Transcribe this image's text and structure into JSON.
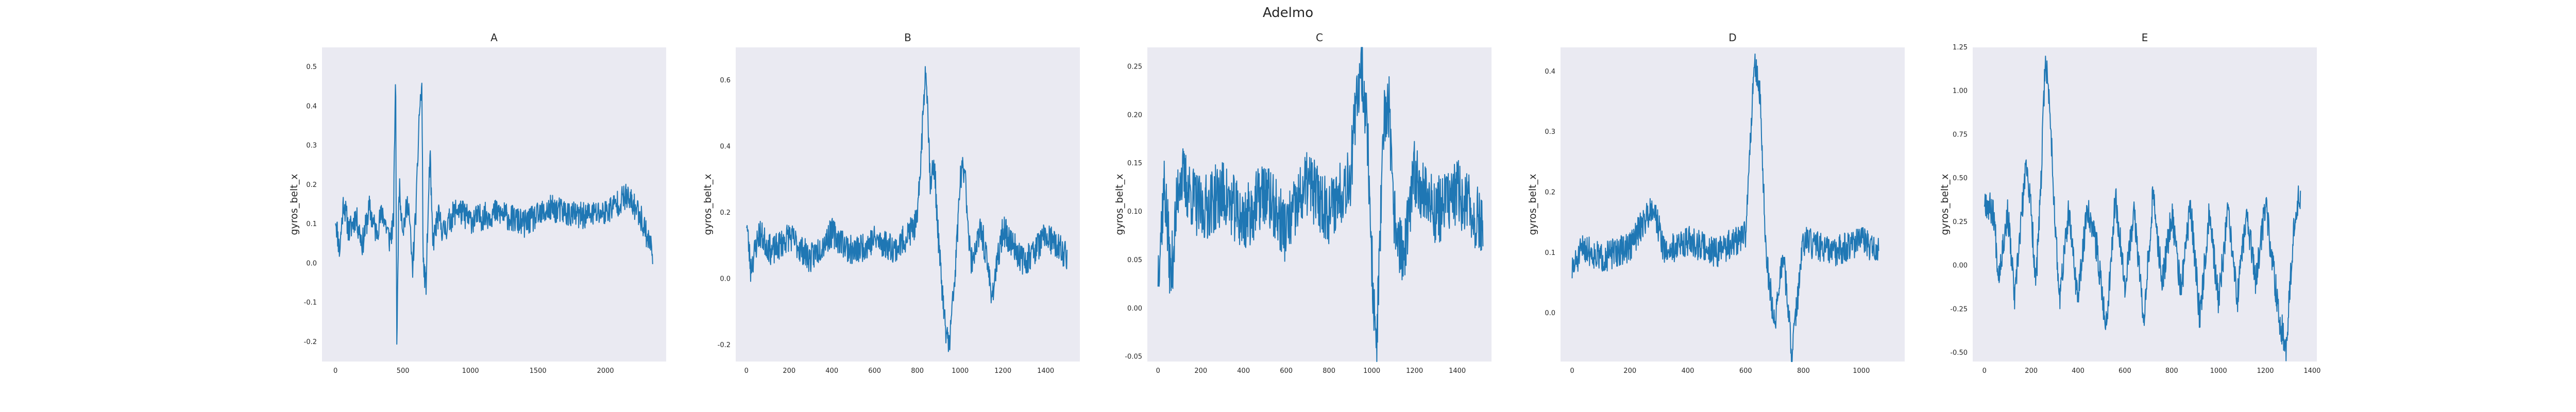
{
  "page": {
    "title": "Adelmo"
  },
  "colors": {
    "line": "#1f77b4",
    "plot_bg": "#eaeaf2"
  },
  "chart_data": [
    {
      "type": "line",
      "title": "A",
      "ylabel": "gyros_belt_x",
      "xlabel": "",
      "xlim": [
        -100,
        2450
      ],
      "ylim": [
        -0.25,
        0.55
      ],
      "xticks": [
        0,
        500,
        1000,
        1500,
        2000
      ],
      "yticks": [
        -0.2,
        -0.1,
        0.0,
        0.1,
        0.2,
        0.3,
        0.4,
        0.5
      ],
      "ytick_labels": [
        "-0.2",
        "-0.1",
        "0.0",
        "0.1",
        "0.2",
        "0.3",
        "0.4",
        "0.5"
      ],
      "keypoints": [
        [
          0,
          0.12
        ],
        [
          30,
          0.03
        ],
        [
          60,
          0.16
        ],
        [
          100,
          0.08
        ],
        [
          150,
          0.12
        ],
        [
          200,
          0.05
        ],
        [
          250,
          0.14
        ],
        [
          300,
          0.08
        ],
        [
          350,
          0.13
        ],
        [
          400,
          0.06
        ],
        [
          430,
          0.1
        ],
        [
          445,
          0.5
        ],
        [
          455,
          -0.23
        ],
        [
          470,
          0.2
        ],
        [
          500,
          0.09
        ],
        [
          540,
          0.16
        ],
        [
          570,
          -0.02
        ],
        [
          600,
          0.16
        ],
        [
          620,
          0.38
        ],
        [
          640,
          0.45
        ],
        [
          650,
          0.0
        ],
        [
          670,
          -0.06
        ],
        [
          700,
          0.28
        ],
        [
          720,
          0.05
        ],
        [
          760,
          0.12
        ],
        [
          800,
          0.08
        ],
        [
          900,
          0.14
        ],
        [
          1000,
          0.11
        ],
        [
          1200,
          0.13
        ],
        [
          1400,
          0.1
        ],
        [
          1600,
          0.14
        ],
        [
          1800,
          0.12
        ],
        [
          2000,
          0.13
        ],
        [
          2150,
          0.17
        ],
        [
          2250,
          0.13
        ],
        [
          2350,
          0.03
        ]
      ],
      "noise": 0.035,
      "seed": 11,
      "n": 2350
    },
    {
      "type": "line",
      "title": "B",
      "ylabel": "gyros_belt_x",
      "xlabel": "",
      "xlim": [
        -50,
        1560
      ],
      "ylim": [
        -0.25,
        0.7
      ],
      "xticks": [
        0,
        200,
        400,
        600,
        800,
        1000,
        1200,
        1400
      ],
      "yticks": [
        -0.2,
        0.0,
        0.2,
        0.4,
        0.6
      ],
      "ytick_labels": [
        "-0.2",
        "0.0",
        "0.2",
        "0.4",
        "0.6"
      ],
      "keypoints": [
        [
          0,
          0.18
        ],
        [
          20,
          0.03
        ],
        [
          60,
          0.14
        ],
        [
          120,
          0.08
        ],
        [
          200,
          0.13
        ],
        [
          300,
          0.06
        ],
        [
          400,
          0.14
        ],
        [
          500,
          0.08
        ],
        [
          600,
          0.12
        ],
        [
          700,
          0.09
        ],
        [
          800,
          0.17
        ],
        [
          840,
          0.66
        ],
        [
          860,
          0.3
        ],
        [
          880,
          0.34
        ],
        [
          900,
          0.1
        ],
        [
          930,
          -0.15
        ],
        [
          950,
          -0.2
        ],
        [
          980,
          0.05
        ],
        [
          1000,
          0.3
        ],
        [
          1020,
          0.34
        ],
        [
          1050,
          0.05
        ],
        [
          1100,
          0.15
        ],
        [
          1150,
          -0.05
        ],
        [
          1200,
          0.15
        ],
        [
          1300,
          0.05
        ],
        [
          1400,
          0.13
        ],
        [
          1500,
          0.07
        ]
      ],
      "noise": 0.045,
      "seed": 23,
      "n": 1500
    },
    {
      "type": "line",
      "title": "C",
      "ylabel": "gyros_belt_x",
      "xlabel": "",
      "xlim": [
        -50,
        1560
      ],
      "ylim": [
        -0.055,
        0.27
      ],
      "xticks": [
        0,
        200,
        400,
        600,
        800,
        1000,
        1200,
        1400
      ],
      "yticks": [
        -0.05,
        0.0,
        0.05,
        0.1,
        0.15,
        0.2,
        0.25
      ],
      "ytick_labels": [
        "-0.05",
        "0.00",
        "0.05",
        "0.10",
        "0.15",
        "0.20",
        "0.25"
      ],
      "keypoints": [
        [
          0,
          0.04
        ],
        [
          30,
          0.13
        ],
        [
          60,
          0.03
        ],
        [
          100,
          0.14
        ],
        [
          200,
          0.1
        ],
        [
          300,
          0.12
        ],
        [
          400,
          0.09
        ],
        [
          500,
          0.12
        ],
        [
          600,
          0.08
        ],
        [
          700,
          0.13
        ],
        [
          800,
          0.1
        ],
        [
          900,
          0.14
        ],
        [
          950,
          0.26
        ],
        [
          980,
          0.18
        ],
        [
          1000,
          0.05
        ],
        [
          1020,
          -0.05
        ],
        [
          1040,
          0.08
        ],
        [
          1060,
          0.2
        ],
        [
          1080,
          0.21
        ],
        [
          1100,
          0.1
        ],
        [
          1150,
          0.05
        ],
        [
          1200,
          0.14
        ],
        [
          1300,
          0.1
        ],
        [
          1400,
          0.12
        ],
        [
          1500,
          0.09
        ]
      ],
      "noise": 0.035,
      "seed": 37,
      "n": 1520
    },
    {
      "type": "line",
      "title": "D",
      "ylabel": "gyros_belt_x",
      "xlabel": "",
      "xlim": [
        -40,
        1150
      ],
      "ylim": [
        -0.08,
        0.44
      ],
      "xticks": [
        0,
        200,
        400,
        600,
        800,
        1000
      ],
      "yticks": [
        0.0,
        0.1,
        0.2,
        0.3,
        0.4
      ],
      "ytick_labels": [
        "0.0",
        "0.1",
        "0.2",
        "0.3",
        "0.4"
      ],
      "keypoints": [
        [
          0,
          0.07
        ],
        [
          40,
          0.11
        ],
        [
          100,
          0.09
        ],
        [
          200,
          0.11
        ],
        [
          280,
          0.18
        ],
        [
          320,
          0.1
        ],
        [
          400,
          0.12
        ],
        [
          500,
          0.1
        ],
        [
          600,
          0.13
        ],
        [
          630,
          0.42
        ],
        [
          650,
          0.36
        ],
        [
          670,
          0.1
        ],
        [
          700,
          -0.02
        ],
        [
          730,
          0.1
        ],
        [
          760,
          -0.07
        ],
        [
          800,
          0.12
        ],
        [
          900,
          0.1
        ],
        [
          1000,
          0.12
        ],
        [
          1060,
          0.1
        ]
      ],
      "noise": 0.025,
      "seed": 51,
      "n": 1060
    },
    {
      "type": "line",
      "title": "E",
      "ylabel": "gyros_belt_x",
      "xlabel": "",
      "xlim": [
        -50,
        1420
      ],
      "ylim": [
        -0.55,
        1.25
      ],
      "xticks": [
        0,
        200,
        400,
        600,
        800,
        1000,
        1200,
        1400
      ],
      "yticks": [
        -0.5,
        -0.25,
        0.0,
        0.25,
        0.5,
        0.75,
        1.0,
        1.25
      ],
      "ytick_labels": [
        "-0.50",
        "-0.25",
        "0.00",
        "0.25",
        "0.50",
        "0.75",
        "1.00",
        "1.25"
      ],
      "keypoints": [
        [
          0,
          0.38
        ],
        [
          40,
          0.3
        ],
        [
          60,
          -0.05
        ],
        [
          100,
          0.3
        ],
        [
          130,
          -0.2
        ],
        [
          150,
          0.15
        ],
        [
          180,
          0.6
        ],
        [
          200,
          0.3
        ],
        [
          220,
          -0.1
        ],
        [
          240,
          0.4
        ],
        [
          260,
          1.2
        ],
        [
          280,
          0.9
        ],
        [
          300,
          0.3
        ],
        [
          320,
          -0.2
        ],
        [
          360,
          0.3
        ],
        [
          400,
          -0.2
        ],
        [
          440,
          0.35
        ],
        [
          480,
          0.1
        ],
        [
          520,
          -0.35
        ],
        [
          560,
          0.4
        ],
        [
          600,
          -0.1
        ],
        [
          640,
          0.3
        ],
        [
          680,
          -0.3
        ],
        [
          720,
          0.4
        ],
        [
          760,
          -0.1
        ],
        [
          800,
          0.3
        ],
        [
          840,
          -0.15
        ],
        [
          880,
          0.35
        ],
        [
          920,
          -0.3
        ],
        [
          960,
          0.3
        ],
        [
          1000,
          -0.2
        ],
        [
          1040,
          0.3
        ],
        [
          1080,
          -0.2
        ],
        [
          1120,
          0.3
        ],
        [
          1160,
          -0.1
        ],
        [
          1200,
          0.35
        ],
        [
          1260,
          -0.3
        ],
        [
          1290,
          -0.48
        ],
        [
          1300,
          -0.2
        ],
        [
          1330,
          0.35
        ],
        [
          1350,
          0.38
        ]
      ],
      "noise": 0.09,
      "seed": 67,
      "n": 1350
    }
  ]
}
